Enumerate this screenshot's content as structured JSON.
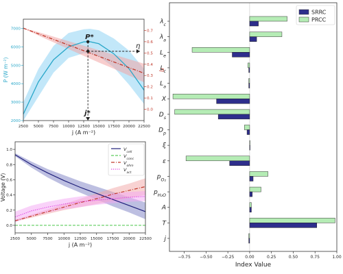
{
  "chart_data": [
    {
      "type": "line",
      "panel": "top-left",
      "xlabel": "j (A m⁻²)",
      "ylabel_left": "P (W m⁻²)",
      "ylabel_right": "η",
      "xlim": [
        2500,
        22500
      ],
      "ylim_left": [
        2000,
        7500
      ],
      "ylim_right": [
        -0.1,
        0.8
      ],
      "xticks": [
        2500,
        5000,
        7500,
        10000,
        12500,
        15000,
        17500,
        20000,
        22500
      ],
      "xtick_labels": [
        "2500",
        "5000",
        "7500",
        "10000",
        "12500",
        "15000",
        "17500",
        "20000",
        "22500"
      ],
      "yticks_left": [
        2000,
        3000,
        4000,
        5000,
        6000,
        7000
      ],
      "ytick_labels_left": [
        "2000",
        "3000",
        "4000",
        "5000",
        "6000",
        "7000"
      ],
      "yticks_right": [
        0.0,
        0.1,
        0.2,
        0.3,
        0.4,
        0.5,
        0.6,
        0.7
      ],
      "ytick_labels_right": [
        "0.0",
        "0.1",
        "0.2",
        "0.3",
        "0.4",
        "0.5",
        "0.6",
        "0.7"
      ],
      "series": [
        {
          "axis": "left",
          "color": "#2aa7c9",
          "band_color": "#8fd3f4",
          "x": [
            2500,
            5000,
            7500,
            10000,
            12500,
            13500,
            15000,
            17500,
            20000,
            22500
          ],
          "y": [
            2350,
            4100,
            5300,
            6000,
            6270,
            6280,
            6170,
            5620,
            4820,
            3650
          ],
          "y_low": [
            1500,
            3300,
            4600,
            5400,
            5650,
            5650,
            5480,
            4880,
            3950,
            2900
          ],
          "y_high": [
            3000,
            4800,
            6050,
            6750,
            6950,
            6980,
            6900,
            6450,
            5800,
            4800
          ]
        },
        {
          "axis": "right",
          "color": "#c0392b",
          "band_color": "#f2a5a5",
          "style": "dash-dot",
          "x": [
            2500,
            5000,
            7500,
            10000,
            12500,
            15000,
            17500,
            20000,
            22500
          ],
          "y": [
            0.72,
            0.67,
            0.62,
            0.57,
            0.52,
            0.47,
            0.42,
            0.37,
            0.32
          ],
          "y_low": [
            0.72,
            0.655,
            0.595,
            0.535,
            0.475,
            0.415,
            0.36,
            0.3,
            0.24
          ],
          "y_high": [
            0.72,
            0.685,
            0.645,
            0.605,
            0.565,
            0.525,
            0.485,
            0.445,
            0.405
          ]
        }
      ],
      "annotations": {
        "p_label": "P*",
        "j_label": "j*",
        "eta_label": "η",
        "p_star": {
          "x": 13200,
          "y": 6280
        },
        "eta_star": {
          "x": 13200,
          "y": 0.515
        }
      }
    },
    {
      "type": "line",
      "panel": "bottom-left",
      "xlabel": "j (A m⁻²)",
      "ylabel": "Voltage (V)",
      "xlim": [
        2500,
        22500
      ],
      "ylim": [
        -0.1,
        1.1
      ],
      "xticks": [
        2500,
        5000,
        7500,
        10000,
        12500,
        15000,
        17500,
        20000,
        22500
      ],
      "xtick_labels": [
        "2500",
        "5000",
        "7500",
        "10000",
        "12500",
        "15000",
        "17500",
        "20000",
        "22500"
      ],
      "yticks": [
        0.0,
        0.2,
        0.4,
        0.6,
        0.8,
        1.0
      ],
      "ytick_labels": [
        "0.0",
        "0.2",
        "0.4",
        "0.6",
        "0.8",
        "1.0"
      ],
      "legend_position": "top-right",
      "series": [
        {
          "name": "V_cell",
          "legend_main": "V",
          "legend_sub": "cell",
          "color": "#1f1f7a",
          "band_color": "#7b7fc4",
          "style": "solid",
          "x": [
            2500,
            5000,
            7500,
            10000,
            12500,
            15000,
            17500,
            20000,
            22500
          ],
          "y": [
            0.93,
            0.8,
            0.69,
            0.59,
            0.5,
            0.42,
            0.34,
            0.26,
            0.18
          ],
          "y_low": [
            0.91,
            0.76,
            0.63,
            0.52,
            0.43,
            0.34,
            0.25,
            0.17,
            0.08
          ],
          "y_high": [
            0.95,
            0.84,
            0.74,
            0.66,
            0.58,
            0.51,
            0.44,
            0.37,
            0.3
          ]
        },
        {
          "name": "V_conc",
          "legend_main": "V",
          "legend_sub": "conc",
          "color": "#5ccc5c",
          "band_color": "#b8ecb8",
          "style": "dashed",
          "x": [
            2500,
            22500
          ],
          "y": [
            0.0,
            0.0
          ],
          "y_low": [
            0.0,
            0.0
          ],
          "y_high": [
            0.0,
            0.0
          ]
        },
        {
          "name": "V_ohm",
          "legend_main": "V",
          "legend_sub": "ohm",
          "color": "#c0392b",
          "band_color": "#f2a5a5",
          "style": "dash-dot",
          "x": [
            2500,
            5000,
            7500,
            10000,
            12500,
            15000,
            17500,
            20000,
            22500
          ],
          "y": [
            0.06,
            0.12,
            0.18,
            0.24,
            0.3,
            0.35,
            0.41,
            0.46,
            0.51
          ],
          "y_low": [
            0.05,
            0.1,
            0.15,
            0.2,
            0.24,
            0.28,
            0.32,
            0.36,
            0.4
          ],
          "y_high": [
            0.07,
            0.14,
            0.21,
            0.28,
            0.35,
            0.42,
            0.49,
            0.55,
            0.62
          ]
        },
        {
          "name": "V_act",
          "legend_main": "V",
          "legend_sub": "act",
          "color": "#e040e0",
          "band_color": "#f4a6f4",
          "style": "dotted",
          "x": [
            2500,
            5000,
            7500,
            10000,
            12500,
            15000,
            17500,
            20000,
            22500
          ],
          "y": [
            0.11,
            0.19,
            0.24,
            0.28,
            0.31,
            0.33,
            0.35,
            0.37,
            0.38
          ],
          "y_low": [
            0.04,
            0.12,
            0.17,
            0.21,
            0.24,
            0.27,
            0.29,
            0.31,
            0.32
          ],
          "y_high": [
            0.18,
            0.26,
            0.31,
            0.35,
            0.38,
            0.4,
            0.42,
            0.44,
            0.45
          ]
        }
      ]
    },
    {
      "type": "bar",
      "orientation": "horizontal",
      "panel": "right",
      "xlabel": "Index Value",
      "xlim": [
        -0.92,
        1.0
      ],
      "xticks": [
        -0.75,
        -0.5,
        -0.25,
        0.0,
        0.25,
        0.5,
        0.75,
        1.0
      ],
      "xtick_labels": [
        "−0.75",
        "−0.50",
        "−0.25",
        "0.00",
        "0.25",
        "0.50",
        "0.75",
        "1.00"
      ],
      "legend_position": "top-right",
      "categories": [
        {
          "main": "λ",
          "sub": "c"
        },
        {
          "main": "λ",
          "sub": "a"
        },
        {
          "main": "L",
          "sub": "e"
        },
        {
          "main": "L",
          "sub": "c"
        },
        {
          "main": "L",
          "sub": "a"
        },
        {
          "main": "X",
          "sub": ""
        },
        {
          "main": "D",
          "sub": "s"
        },
        {
          "main": "D",
          "sub": "p"
        },
        {
          "main": "ξ",
          "sub": ""
        },
        {
          "main": "ε",
          "sub": ""
        },
        {
          "main": "p",
          "sub": "O₂"
        },
        {
          "main": "p",
          "sub": "H₂O"
        },
        {
          "main": "A",
          "sub": ""
        },
        {
          "main": "T",
          "sub": ""
        },
        {
          "main": "j",
          "sub": ""
        }
      ],
      "series": [
        {
          "name": "SRRC",
          "color": "#2e2e8c",
          "values": [
            0.1,
            0.08,
            -0.2,
            -0.01,
            -0.01,
            -0.38,
            -0.36,
            -0.03,
            0.0,
            -0.23,
            0.04,
            0.03,
            0.02,
            0.77,
            -0.01
          ]
        },
        {
          "name": "PRCC",
          "color": "#b5ecb5",
          "values": [
            0.43,
            0.37,
            -0.66,
            -0.02,
            -0.01,
            -0.88,
            -0.86,
            -0.06,
            0.0,
            -0.73,
            0.21,
            0.13,
            0.02,
            0.98,
            -0.01
          ]
        }
      ]
    }
  ]
}
